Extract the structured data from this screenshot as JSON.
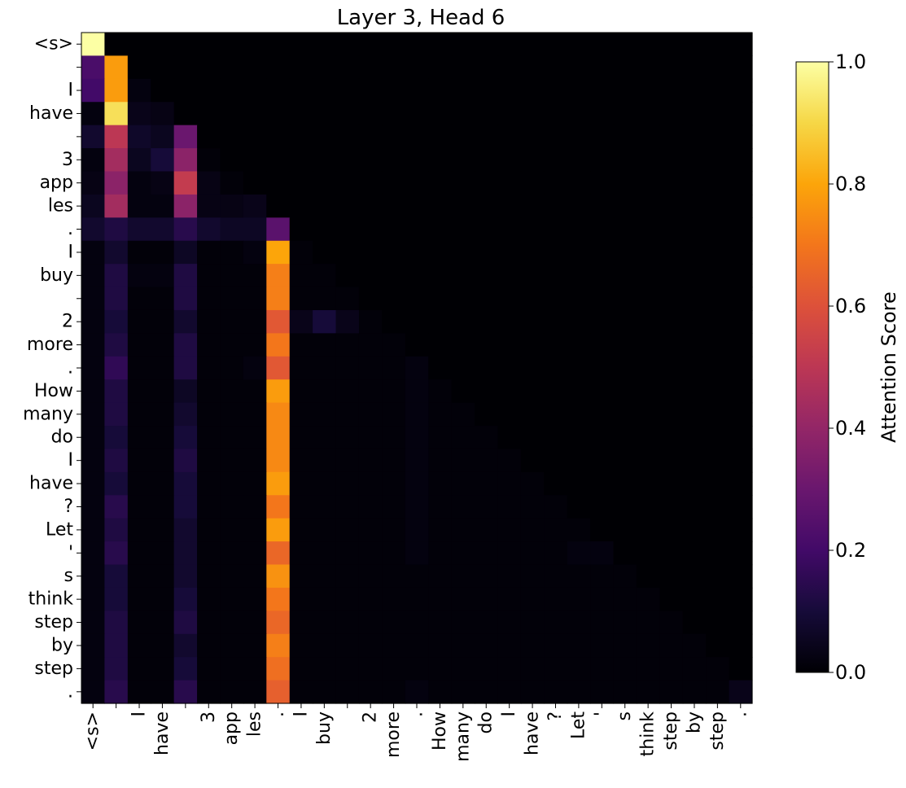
{
  "chart_data": {
    "type": "heatmap",
    "title": "Layer 3, Head 6",
    "tokens": [
      "<s>",
      "",
      "I",
      "have",
      "",
      "3",
      "app",
      "les",
      ".",
      "I",
      "buy",
      "",
      "2",
      "more",
      ".",
      "How",
      "many",
      "do",
      "I",
      "have",
      "?",
      "Let",
      "'",
      "s",
      "think",
      "step",
      "by",
      "step",
      "."
    ],
    "x_tick_labels": [
      "<s>",
      "",
      "I",
      "have",
      "",
      "3",
      "app",
      "les",
      ".",
      "I",
      "buy",
      "",
      "2",
      "more",
      ".",
      "How",
      "many",
      "do",
      "I",
      "have",
      "?",
      "Let",
      "'",
      "s",
      "think",
      "step",
      "by",
      "step",
      "."
    ],
    "colorbar": {
      "label": "Attention Score",
      "range": [
        0.0,
        1.0
      ],
      "ticks": [
        "0.0",
        "0.2",
        "0.4",
        "0.6",
        "0.8",
        "1.0"
      ],
      "colormap": "inferno"
    },
    "values": [
      [
        1.0,
        0,
        0,
        0,
        0,
        0,
        0,
        0,
        0,
        0,
        0,
        0,
        0,
        0,
        0,
        0,
        0,
        0,
        0,
        0,
        0,
        0,
        0,
        0,
        0,
        0,
        0,
        0,
        0
      ],
      [
        0.22,
        0.78,
        0,
        0,
        0,
        0,
        0,
        0,
        0,
        0,
        0,
        0,
        0,
        0,
        0,
        0,
        0,
        0,
        0,
        0,
        0,
        0,
        0,
        0,
        0,
        0,
        0,
        0,
        0
      ],
      [
        0.2,
        0.78,
        0.02,
        0,
        0,
        0,
        0,
        0,
        0,
        0,
        0,
        0,
        0,
        0,
        0,
        0,
        0,
        0,
        0,
        0,
        0,
        0,
        0,
        0,
        0,
        0,
        0,
        0,
        0
      ],
      [
        0.02,
        0.92,
        0.04,
        0.03,
        0,
        0,
        0,
        0,
        0,
        0,
        0,
        0,
        0,
        0,
        0,
        0,
        0,
        0,
        0,
        0,
        0,
        0,
        0,
        0,
        0,
        0,
        0,
        0,
        0
      ],
      [
        0.08,
        0.5,
        0.07,
        0.05,
        0.3,
        0,
        0,
        0,
        0,
        0,
        0,
        0,
        0,
        0,
        0,
        0,
        0,
        0,
        0,
        0,
        0,
        0,
        0,
        0,
        0,
        0,
        0,
        0,
        0
      ],
      [
        0.02,
        0.44,
        0.05,
        0.1,
        0.38,
        0.01,
        0,
        0,
        0,
        0,
        0,
        0,
        0,
        0,
        0,
        0,
        0,
        0,
        0,
        0,
        0,
        0,
        0,
        0,
        0,
        0,
        0,
        0,
        0
      ],
      [
        0.03,
        0.38,
        0.02,
        0.03,
        0.52,
        0.03,
        0.01,
        0,
        0,
        0,
        0,
        0,
        0,
        0,
        0,
        0,
        0,
        0,
        0,
        0,
        0,
        0,
        0,
        0,
        0,
        0,
        0,
        0,
        0
      ],
      [
        0.05,
        0.44,
        0.02,
        0.02,
        0.38,
        0.03,
        0.03,
        0.04,
        0,
        0,
        0,
        0,
        0,
        0,
        0,
        0,
        0,
        0,
        0,
        0,
        0,
        0,
        0,
        0,
        0,
        0,
        0,
        0,
        0
      ],
      [
        0.08,
        0.12,
        0.08,
        0.08,
        0.14,
        0.08,
        0.06,
        0.06,
        0.26,
        0,
        0,
        0,
        0,
        0,
        0,
        0,
        0,
        0,
        0,
        0,
        0,
        0,
        0,
        0,
        0,
        0,
        0,
        0,
        0
      ],
      [
        0.02,
        0.08,
        0.01,
        0.01,
        0.06,
        0.01,
        0.01,
        0.02,
        0.8,
        0.01,
        0,
        0,
        0,
        0,
        0,
        0,
        0,
        0,
        0,
        0,
        0,
        0,
        0,
        0,
        0,
        0,
        0,
        0,
        0
      ],
      [
        0.02,
        0.12,
        0.02,
        0.02,
        0.12,
        0.01,
        0.01,
        0.01,
        0.72,
        0.01,
        0.01,
        0,
        0,
        0,
        0,
        0,
        0,
        0,
        0,
        0,
        0,
        0,
        0,
        0,
        0,
        0,
        0,
        0,
        0
      ],
      [
        0.02,
        0.12,
        0.01,
        0.01,
        0.12,
        0.01,
        0.01,
        0.01,
        0.72,
        0.01,
        0.01,
        0.01,
        0,
        0,
        0,
        0,
        0,
        0,
        0,
        0,
        0,
        0,
        0,
        0,
        0,
        0,
        0,
        0,
        0
      ],
      [
        0.02,
        0.1,
        0.01,
        0.01,
        0.08,
        0.01,
        0.01,
        0.01,
        0.62,
        0.04,
        0.1,
        0.04,
        0.01,
        0,
        0,
        0,
        0,
        0,
        0,
        0,
        0,
        0,
        0,
        0,
        0,
        0,
        0,
        0,
        0
      ],
      [
        0.02,
        0.12,
        0.01,
        0.01,
        0.12,
        0.01,
        0.01,
        0.01,
        0.7,
        0.01,
        0.01,
        0.01,
        0.01,
        0.01,
        0,
        0,
        0,
        0,
        0,
        0,
        0,
        0,
        0,
        0,
        0,
        0,
        0,
        0,
        0
      ],
      [
        0.02,
        0.16,
        0.01,
        0.01,
        0.12,
        0.01,
        0.01,
        0.02,
        0.62,
        0.01,
        0.01,
        0.01,
        0.01,
        0.01,
        0.02,
        0,
        0,
        0,
        0,
        0,
        0,
        0,
        0,
        0,
        0,
        0,
        0,
        0,
        0
      ],
      [
        0.02,
        0.12,
        0.01,
        0.01,
        0.06,
        0.01,
        0.01,
        0.01,
        0.78,
        0.01,
        0.01,
        0.01,
        0.01,
        0.01,
        0.02,
        0.01,
        0,
        0,
        0,
        0,
        0,
        0,
        0,
        0,
        0,
        0,
        0,
        0,
        0
      ],
      [
        0.02,
        0.12,
        0.01,
        0.01,
        0.08,
        0.01,
        0.01,
        0.01,
        0.74,
        0.01,
        0.01,
        0.01,
        0.01,
        0.01,
        0.02,
        0.01,
        0.01,
        0,
        0,
        0,
        0,
        0,
        0,
        0,
        0,
        0,
        0,
        0,
        0
      ],
      [
        0.02,
        0.1,
        0.01,
        0.01,
        0.1,
        0.01,
        0.01,
        0.01,
        0.74,
        0.01,
        0.01,
        0.01,
        0.01,
        0.01,
        0.02,
        0.01,
        0.01,
        0.01,
        0,
        0,
        0,
        0,
        0,
        0,
        0,
        0,
        0,
        0,
        0
      ],
      [
        0.02,
        0.12,
        0.01,
        0.01,
        0.12,
        0.01,
        0.01,
        0.01,
        0.74,
        0.01,
        0.01,
        0.01,
        0.01,
        0.01,
        0.02,
        0.01,
        0.01,
        0.01,
        0.01,
        0,
        0,
        0,
        0,
        0,
        0,
        0,
        0,
        0,
        0
      ],
      [
        0.02,
        0.1,
        0.01,
        0.01,
        0.1,
        0.01,
        0.01,
        0.01,
        0.78,
        0.01,
        0.01,
        0.01,
        0.01,
        0.01,
        0.02,
        0.01,
        0.01,
        0.01,
        0.01,
        0.01,
        0,
        0,
        0,
        0,
        0,
        0,
        0,
        0,
        0
      ],
      [
        0.02,
        0.14,
        0.01,
        0.01,
        0.1,
        0.01,
        0.01,
        0.01,
        0.7,
        0.01,
        0.01,
        0.01,
        0.01,
        0.01,
        0.02,
        0.01,
        0.01,
        0.01,
        0.01,
        0.01,
        0.01,
        0,
        0,
        0,
        0,
        0,
        0,
        0,
        0
      ],
      [
        0.02,
        0.12,
        0.01,
        0.01,
        0.08,
        0.01,
        0.01,
        0.01,
        0.78,
        0.01,
        0.01,
        0.01,
        0.01,
        0.01,
        0.02,
        0.01,
        0.01,
        0.01,
        0.01,
        0.01,
        0.01,
        0.01,
        0,
        0,
        0,
        0,
        0,
        0,
        0
      ],
      [
        0.02,
        0.14,
        0.01,
        0.01,
        0.08,
        0.01,
        0.01,
        0.01,
        0.66,
        0.01,
        0.01,
        0.01,
        0.01,
        0.01,
        0.02,
        0.01,
        0.01,
        0.01,
        0.01,
        0.01,
        0.01,
        0.02,
        0.02,
        0,
        0,
        0,
        0,
        0,
        0
      ],
      [
        0.02,
        0.1,
        0.01,
        0.01,
        0.08,
        0.01,
        0.01,
        0.01,
        0.76,
        0.01,
        0.01,
        0.01,
        0.01,
        0.01,
        0.01,
        0.01,
        0.01,
        0.01,
        0.01,
        0.01,
        0.01,
        0.01,
        0.01,
        0.01,
        0,
        0,
        0,
        0,
        0
      ],
      [
        0.02,
        0.1,
        0.01,
        0.01,
        0.1,
        0.01,
        0.01,
        0.01,
        0.7,
        0.01,
        0.01,
        0.01,
        0.01,
        0.01,
        0.01,
        0.01,
        0.01,
        0.01,
        0.01,
        0.01,
        0.01,
        0.01,
        0.01,
        0.01,
        0.01,
        0,
        0,
        0,
        0
      ],
      [
        0.02,
        0.12,
        0.01,
        0.01,
        0.12,
        0.01,
        0.01,
        0.01,
        0.66,
        0.01,
        0.01,
        0.01,
        0.01,
        0.01,
        0.01,
        0.01,
        0.01,
        0.01,
        0.01,
        0.01,
        0.01,
        0.01,
        0.01,
        0.01,
        0.01,
        0.01,
        0,
        0,
        0
      ],
      [
        0.02,
        0.12,
        0.01,
        0.01,
        0.08,
        0.01,
        0.01,
        0.01,
        0.72,
        0.01,
        0.01,
        0.01,
        0.01,
        0.01,
        0.01,
        0.01,
        0.01,
        0.01,
        0.01,
        0.01,
        0.01,
        0.01,
        0.01,
        0.01,
        0.01,
        0.01,
        0.01,
        0,
        0
      ],
      [
        0.02,
        0.12,
        0.01,
        0.01,
        0.1,
        0.01,
        0.01,
        0.01,
        0.68,
        0.01,
        0.01,
        0.01,
        0.01,
        0.01,
        0.01,
        0.01,
        0.01,
        0.01,
        0.01,
        0.01,
        0.01,
        0.01,
        0.01,
        0.01,
        0.01,
        0.01,
        0.01,
        0.01,
        0
      ],
      [
        0.02,
        0.14,
        0.01,
        0.01,
        0.14,
        0.01,
        0.01,
        0.01,
        0.64,
        0.01,
        0.01,
        0.01,
        0.01,
        0.01,
        0.02,
        0.01,
        0.01,
        0.01,
        0.01,
        0.01,
        0.01,
        0.01,
        0.01,
        0.01,
        0.01,
        0.01,
        0.01,
        0.01,
        0.04
      ]
    ]
  }
}
